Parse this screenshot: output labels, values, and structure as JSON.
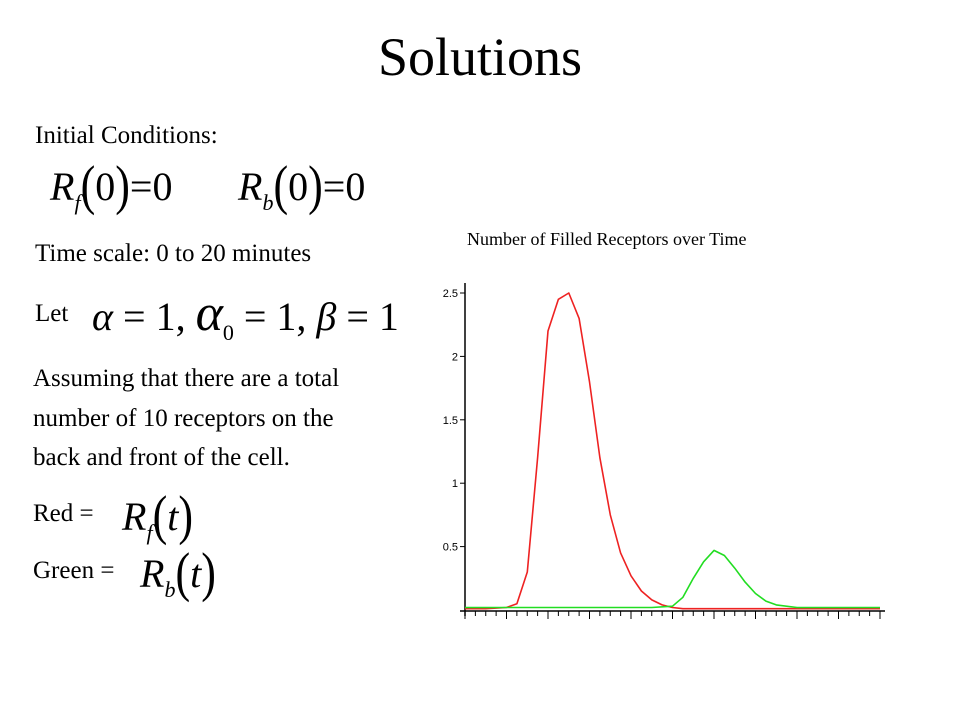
{
  "slide": {
    "title": "Solutions",
    "initial_conditions_label": "Initial Conditions:",
    "ic_rf_symbol": "R",
    "ic_rf_sub": "f",
    "ic_rb_symbol": "R",
    "ic_rb_sub": "b",
    "ic_arg": "0",
    "ic_value": "0",
    "time_scale": "Time scale: 0 to 20 minutes",
    "let_label": "Let",
    "alpha": "α",
    "alpha_sub": "0",
    "beta": "β",
    "one": "1",
    "assumption_lines": [
      "Assuming that there are a total",
      "number of 10 receptors on the",
      "back and front of the cell."
    ],
    "red_label": "Red =",
    "green_label": "Green =",
    "t_arg": "t"
  },
  "chart_data": {
    "type": "line",
    "title": "Number of Filled Receptors over Time",
    "xlabel": "",
    "ylabel": "",
    "xlim": [
      0,
      20
    ],
    "ylim": [
      0,
      2.5
    ],
    "yticks": [
      "0.5",
      "1",
      "1.5",
      "2",
      "2.5"
    ],
    "x_minor_ticks": 40,
    "grid": false,
    "legend": "none",
    "series": [
      {
        "color": "#ee2222",
        "x": [
          0,
          1,
          2,
          2.5,
          3,
          3.5,
          4,
          4.5,
          5,
          5.5,
          6,
          6.5,
          7,
          7.5,
          8,
          8.5,
          9,
          9.5,
          10,
          10.5,
          11,
          12,
          13,
          14,
          15,
          16,
          17,
          18,
          19,
          20
        ],
        "y": [
          0.01,
          0.01,
          0.02,
          0.05,
          0.3,
          1.2,
          2.2,
          2.45,
          2.5,
          2.3,
          1.8,
          1.2,
          0.75,
          0.45,
          0.27,
          0.15,
          0.08,
          0.04,
          0.02,
          0.01,
          0.01,
          0.01,
          0.01,
          0.01,
          0.01,
          0.01,
          0.01,
          0.01,
          0.01,
          0.01
        ]
      },
      {
        "color": "#22dd22",
        "x": [
          0,
          5,
          9,
          10,
          10.5,
          11,
          11.5,
          12,
          12.5,
          13,
          13.5,
          14,
          14.5,
          15,
          16,
          17,
          18,
          19,
          20
        ],
        "y": [
          0.02,
          0.02,
          0.02,
          0.03,
          0.1,
          0.25,
          0.38,
          0.47,
          0.43,
          0.33,
          0.22,
          0.13,
          0.07,
          0.04,
          0.02,
          0.02,
          0.02,
          0.02,
          0.02
        ]
      }
    ]
  }
}
